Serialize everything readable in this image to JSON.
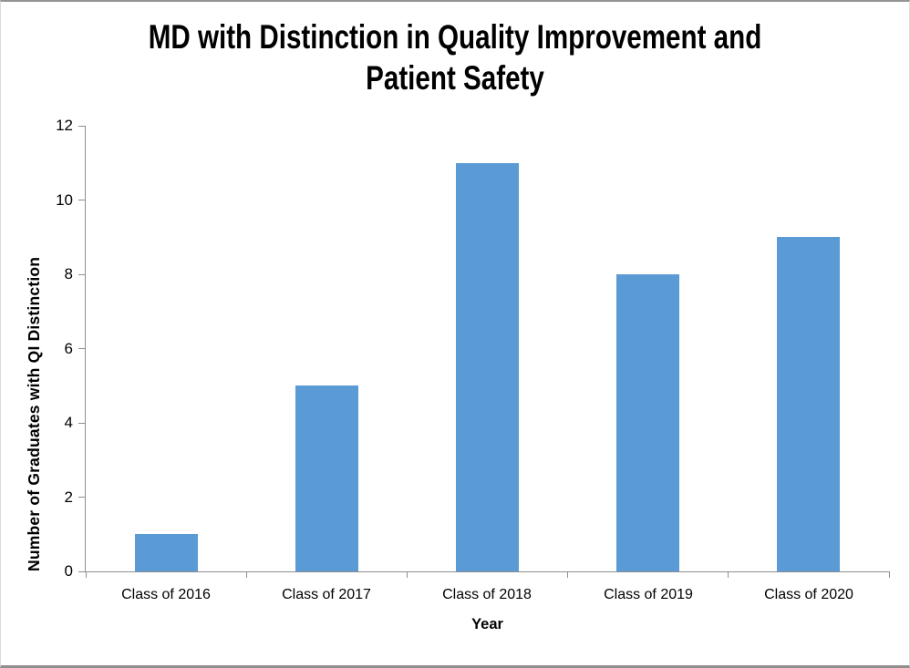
{
  "window": {
    "background": "#ffffff"
  },
  "title": {
    "lines": [
      "MD with Distinction in Quality Improvement and",
      "Patient Safety"
    ]
  },
  "chart_data": {
    "type": "bar",
    "title": "MD with Distinction in Quality Improvement and Patient Safety",
    "categories": [
      "Class of 2016",
      "Class of 2017",
      "Class of 2018",
      "Class of 2019",
      "Class of 2020"
    ],
    "values": [
      1,
      5,
      11,
      8,
      9
    ],
    "xlabel": "Year",
    "ylabel": "Number of Graduates with QI Distinction",
    "ylim": [
      0,
      12
    ],
    "yticks": [
      0,
      2,
      4,
      6,
      8,
      10,
      12
    ],
    "grid": false,
    "legend": "none",
    "colors": {
      "bar": "#5B9BD5",
      "axis": "#8E8E8E",
      "text": "#000000",
      "frame_border": "#8F8F8F"
    }
  }
}
